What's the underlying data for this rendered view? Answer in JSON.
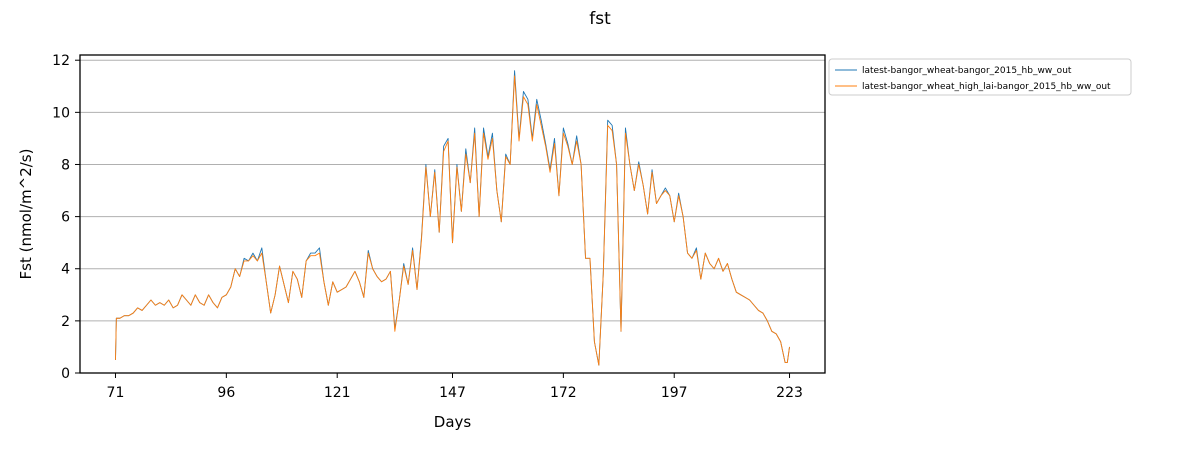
{
  "chart_data": {
    "type": "line",
    "title": "fst",
    "xlabel": "Days",
    "ylabel": "Fst (nmol/m^2/s)",
    "xlim": [
      63,
      231
    ],
    "ylim": [
      0,
      12.2
    ],
    "x_ticks": [
      71,
      96,
      121,
      147,
      172,
      197,
      223
    ],
    "y_ticks": [
      0,
      2,
      4,
      6,
      8,
      10,
      12
    ],
    "grid": "y-major",
    "legend_position": "outside-top-right",
    "series": [
      {
        "name": "latest-bangor_wheat-bangor_2015_hb_ww_out",
        "color": "#1f77b4",
        "points": [
          [
            71,
            0.5
          ],
          [
            71.2,
            2.1
          ],
          [
            72,
            2.1
          ],
          [
            73,
            2.2
          ],
          [
            74,
            2.2
          ],
          [
            75,
            2.3
          ],
          [
            76,
            2.5
          ],
          [
            77,
            2.4
          ],
          [
            78,
            2.6
          ],
          [
            79,
            2.8
          ],
          [
            80,
            2.6
          ],
          [
            81,
            2.7
          ],
          [
            82,
            2.6
          ],
          [
            83,
            2.8
          ],
          [
            84,
            2.5
          ],
          [
            85,
            2.6
          ],
          [
            86,
            3.0
          ],
          [
            87,
            2.8
          ],
          [
            88,
            2.6
          ],
          [
            89,
            3.0
          ],
          [
            90,
            2.7
          ],
          [
            91,
            2.6
          ],
          [
            92,
            3.0
          ],
          [
            93,
            2.7
          ],
          [
            94,
            2.5
          ],
          [
            95,
            2.9
          ],
          [
            96,
            3.0
          ],
          [
            97,
            3.3
          ],
          [
            98,
            4.0
          ],
          [
            99,
            3.7
          ],
          [
            100,
            4.4
          ],
          [
            101,
            4.3
          ],
          [
            102,
            4.6
          ],
          [
            103,
            4.3
          ],
          [
            104,
            4.8
          ],
          [
            105,
            3.5
          ],
          [
            106,
            2.3
          ],
          [
            107,
            3.0
          ],
          [
            108,
            4.1
          ],
          [
            109,
            3.4
          ],
          [
            110,
            2.7
          ],
          [
            111,
            3.9
          ],
          [
            112,
            3.6
          ],
          [
            113,
            2.9
          ],
          [
            114,
            4.3
          ],
          [
            115,
            4.6
          ],
          [
            116,
            4.6
          ],
          [
            117,
            4.8
          ],
          [
            118,
            3.5
          ],
          [
            119,
            2.6
          ],
          [
            120,
            3.5
          ],
          [
            121,
            3.1
          ],
          [
            122,
            3.2
          ],
          [
            123,
            3.3
          ],
          [
            124,
            3.6
          ],
          [
            125,
            3.9
          ],
          [
            126,
            3.5
          ],
          [
            127,
            2.9
          ],
          [
            128,
            4.7
          ],
          [
            129,
            4.0
          ],
          [
            130,
            3.7
          ],
          [
            131,
            3.5
          ],
          [
            132,
            3.6
          ],
          [
            133,
            3.9
          ],
          [
            134,
            1.7
          ],
          [
            135,
            2.8
          ],
          [
            136,
            4.2
          ],
          [
            137,
            3.4
          ],
          [
            138,
            4.8
          ],
          [
            139,
            3.2
          ],
          [
            140,
            5.2
          ],
          [
            141,
            8.0
          ],
          [
            142,
            6.0
          ],
          [
            143,
            7.8
          ],
          [
            144,
            5.4
          ],
          [
            145,
            8.7
          ],
          [
            146,
            9.0
          ],
          [
            147,
            5.0
          ],
          [
            148,
            8.0
          ],
          [
            149,
            6.2
          ],
          [
            150,
            8.6
          ],
          [
            151,
            7.3
          ],
          [
            152,
            9.4
          ],
          [
            153,
            6.0
          ],
          [
            154,
            9.4
          ],
          [
            155,
            8.3
          ],
          [
            156,
            9.2
          ],
          [
            157,
            7.0
          ],
          [
            158,
            5.8
          ],
          [
            159,
            8.4
          ],
          [
            160,
            8.0
          ],
          [
            161,
            11.6
          ],
          [
            162,
            9.0
          ],
          [
            163,
            10.8
          ],
          [
            164,
            10.5
          ],
          [
            165,
            9.0
          ],
          [
            166,
            10.5
          ],
          [
            167,
            9.7
          ],
          [
            168,
            8.8
          ],
          [
            169,
            7.8
          ],
          [
            170,
            9.0
          ],
          [
            171,
            6.8
          ],
          [
            172,
            9.4
          ],
          [
            173,
            8.8
          ],
          [
            174,
            8.0
          ],
          [
            175,
            9.1
          ],
          [
            176,
            8.0
          ],
          [
            177,
            4.4
          ],
          [
            178,
            4.4
          ],
          [
            179,
            1.2
          ],
          [
            180,
            0.3
          ],
          [
            181,
            3.8
          ],
          [
            182,
            9.7
          ],
          [
            183,
            9.5
          ],
          [
            184,
            8.0
          ],
          [
            185,
            1.6
          ],
          [
            186,
            9.4
          ],
          [
            187,
            8.0
          ],
          [
            188,
            7.0
          ],
          [
            189,
            8.1
          ],
          [
            190,
            7.2
          ],
          [
            191,
            6.1
          ],
          [
            192,
            7.8
          ],
          [
            193,
            6.5
          ],
          [
            194,
            6.8
          ],
          [
            195,
            7.1
          ],
          [
            196,
            6.8
          ],
          [
            197,
            5.8
          ],
          [
            198,
            6.9
          ],
          [
            199,
            6.0
          ],
          [
            200,
            4.6
          ],
          [
            201,
            4.4
          ],
          [
            202,
            4.8
          ],
          [
            203,
            3.6
          ],
          [
            204,
            4.6
          ],
          [
            205,
            4.2
          ],
          [
            206,
            4.0
          ],
          [
            207,
            4.4
          ],
          [
            208,
            3.9
          ],
          [
            209,
            4.2
          ],
          [
            210,
            3.6
          ],
          [
            211,
            3.1
          ],
          [
            212,
            3.0
          ],
          [
            213,
            2.9
          ],
          [
            214,
            2.8
          ],
          [
            215,
            2.6
          ],
          [
            216,
            2.4
          ],
          [
            217,
            2.3
          ],
          [
            218,
            2.0
          ],
          [
            219,
            1.6
          ],
          [
            220,
            1.5
          ],
          [
            221,
            1.2
          ],
          [
            222,
            0.4
          ],
          [
            222.5,
            0.4
          ],
          [
            223,
            1.0
          ]
        ]
      },
      {
        "name": "latest-bangor_wheat_high_lai-bangor_2015_hb_ww_out",
        "color": "#ff7f0e",
        "points": [
          [
            71,
            0.5
          ],
          [
            71.2,
            2.1
          ],
          [
            72,
            2.1
          ],
          [
            73,
            2.2
          ],
          [
            74,
            2.2
          ],
          [
            75,
            2.3
          ],
          [
            76,
            2.5
          ],
          [
            77,
            2.4
          ],
          [
            78,
            2.6
          ],
          [
            79,
            2.8
          ],
          [
            80,
            2.6
          ],
          [
            81,
            2.7
          ],
          [
            82,
            2.6
          ],
          [
            83,
            2.8
          ],
          [
            84,
            2.5
          ],
          [
            85,
            2.6
          ],
          [
            86,
            3.0
          ],
          [
            87,
            2.8
          ],
          [
            88,
            2.6
          ],
          [
            89,
            3.0
          ],
          [
            90,
            2.7
          ],
          [
            91,
            2.6
          ],
          [
            92,
            3.0
          ],
          [
            93,
            2.7
          ],
          [
            94,
            2.5
          ],
          [
            95,
            2.9
          ],
          [
            96,
            3.0
          ],
          [
            97,
            3.3
          ],
          [
            98,
            4.0
          ],
          [
            99,
            3.7
          ],
          [
            100,
            4.3
          ],
          [
            101,
            4.3
          ],
          [
            102,
            4.5
          ],
          [
            103,
            4.3
          ],
          [
            104,
            4.6
          ],
          [
            105,
            3.5
          ],
          [
            106,
            2.3
          ],
          [
            107,
            3.0
          ],
          [
            108,
            4.1
          ],
          [
            109,
            3.4
          ],
          [
            110,
            2.7
          ],
          [
            111,
            3.9
          ],
          [
            112,
            3.6
          ],
          [
            113,
            2.9
          ],
          [
            114,
            4.3
          ],
          [
            115,
            4.5
          ],
          [
            116,
            4.5
          ],
          [
            117,
            4.6
          ],
          [
            118,
            3.5
          ],
          [
            119,
            2.6
          ],
          [
            120,
            3.5
          ],
          [
            121,
            3.1
          ],
          [
            122,
            3.2
          ],
          [
            123,
            3.3
          ],
          [
            124,
            3.6
          ],
          [
            125,
            3.9
          ],
          [
            126,
            3.5
          ],
          [
            127,
            2.9
          ],
          [
            128,
            4.6
          ],
          [
            129,
            4.0
          ],
          [
            130,
            3.7
          ],
          [
            131,
            3.5
          ],
          [
            132,
            3.6
          ],
          [
            133,
            3.9
          ],
          [
            134,
            1.6
          ],
          [
            135,
            2.8
          ],
          [
            136,
            4.1
          ],
          [
            137,
            3.4
          ],
          [
            138,
            4.7
          ],
          [
            139,
            3.2
          ],
          [
            140,
            5.1
          ],
          [
            141,
            7.9
          ],
          [
            142,
            6.0
          ],
          [
            143,
            7.7
          ],
          [
            144,
            5.4
          ],
          [
            145,
            8.5
          ],
          [
            146,
            8.9
          ],
          [
            147,
            5.0
          ],
          [
            148,
            7.9
          ],
          [
            149,
            6.2
          ],
          [
            150,
            8.4
          ],
          [
            151,
            7.3
          ],
          [
            152,
            9.2
          ],
          [
            153,
            6.0
          ],
          [
            154,
            9.2
          ],
          [
            155,
            8.2
          ],
          [
            156,
            9.0
          ],
          [
            157,
            7.0
          ],
          [
            158,
            5.8
          ],
          [
            159,
            8.3
          ],
          [
            160,
            8.0
          ],
          [
            161,
            11.4
          ],
          [
            162,
            8.9
          ],
          [
            163,
            10.6
          ],
          [
            164,
            10.3
          ],
          [
            165,
            8.9
          ],
          [
            166,
            10.3
          ],
          [
            167,
            9.5
          ],
          [
            168,
            8.7
          ],
          [
            169,
            7.7
          ],
          [
            170,
            8.8
          ],
          [
            171,
            6.8
          ],
          [
            172,
            9.2
          ],
          [
            173,
            8.7
          ],
          [
            174,
            8.0
          ],
          [
            175,
            8.9
          ],
          [
            176,
            8.0
          ],
          [
            177,
            4.4
          ],
          [
            178,
            4.4
          ],
          [
            179,
            1.2
          ],
          [
            180,
            0.3
          ],
          [
            181,
            3.8
          ],
          [
            182,
            9.5
          ],
          [
            183,
            9.3
          ],
          [
            184,
            8.0
          ],
          [
            185,
            1.6
          ],
          [
            186,
            9.2
          ],
          [
            187,
            8.0
          ],
          [
            188,
            7.0
          ],
          [
            189,
            8.0
          ],
          [
            190,
            7.2
          ],
          [
            191,
            6.1
          ],
          [
            192,
            7.7
          ],
          [
            193,
            6.5
          ],
          [
            194,
            6.8
          ],
          [
            195,
            7.0
          ],
          [
            196,
            6.8
          ],
          [
            197,
            5.8
          ],
          [
            198,
            6.8
          ],
          [
            199,
            6.0
          ],
          [
            200,
            4.6
          ],
          [
            201,
            4.4
          ],
          [
            202,
            4.7
          ],
          [
            203,
            3.6
          ],
          [
            204,
            4.6
          ],
          [
            205,
            4.2
          ],
          [
            206,
            4.0
          ],
          [
            207,
            4.4
          ],
          [
            208,
            3.9
          ],
          [
            209,
            4.2
          ],
          [
            210,
            3.6
          ],
          [
            211,
            3.1
          ],
          [
            212,
            3.0
          ],
          [
            213,
            2.9
          ],
          [
            214,
            2.8
          ],
          [
            215,
            2.6
          ],
          [
            216,
            2.4
          ],
          [
            217,
            2.3
          ],
          [
            218,
            2.0
          ],
          [
            219,
            1.6
          ],
          [
            220,
            1.5
          ],
          [
            221,
            1.2
          ],
          [
            222,
            0.4
          ],
          [
            222.5,
            0.4
          ],
          [
            223,
            1.0
          ]
        ]
      }
    ]
  }
}
